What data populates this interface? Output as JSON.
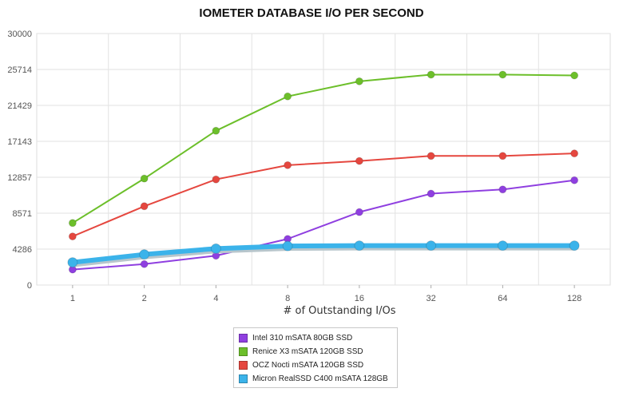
{
  "chart_data": {
    "type": "line",
    "title": "IOMETER DATABASE I/O PER SECOND",
    "xlabel": "# of Outstanding I/Os",
    "ylabel": "",
    "x": [
      "1",
      "2",
      "4",
      "8",
      "16",
      "32",
      "64",
      "128"
    ],
    "ylim": [
      0,
      30000
    ],
    "yticks": [
      "0",
      "4286",
      "8571",
      "12857",
      "17143",
      "21429",
      "25714",
      "30000"
    ],
    "grid": true,
    "legend_position": "bottom",
    "series": [
      {
        "name": "Intel 310 mSATA 80GB SSD",
        "color": "#8f3fe0",
        "values": [
          1850,
          2500,
          3500,
          5500,
          8700,
          10900,
          11400,
          12500
        ]
      },
      {
        "name": "Renice X3 mSATA 120GB SSD",
        "color": "#6cbf2a",
        "values": [
          7400,
          12700,
          18400,
          22500,
          24300,
          25100,
          25100,
          25000
        ]
      },
      {
        "name": "OCZ Nocti mSATA 120GB SSD",
        "color": "#e5473f",
        "values": [
          5800,
          9400,
          12600,
          14300,
          14800,
          15400,
          15400,
          15700
        ]
      },
      {
        "name": "Micron RealSSD C400 mSATA 128GB",
        "color": "#3bb3ea",
        "values": [
          2700,
          3650,
          4350,
          4650,
          4700,
          4700,
          4700,
          4700
        ]
      }
    ]
  }
}
